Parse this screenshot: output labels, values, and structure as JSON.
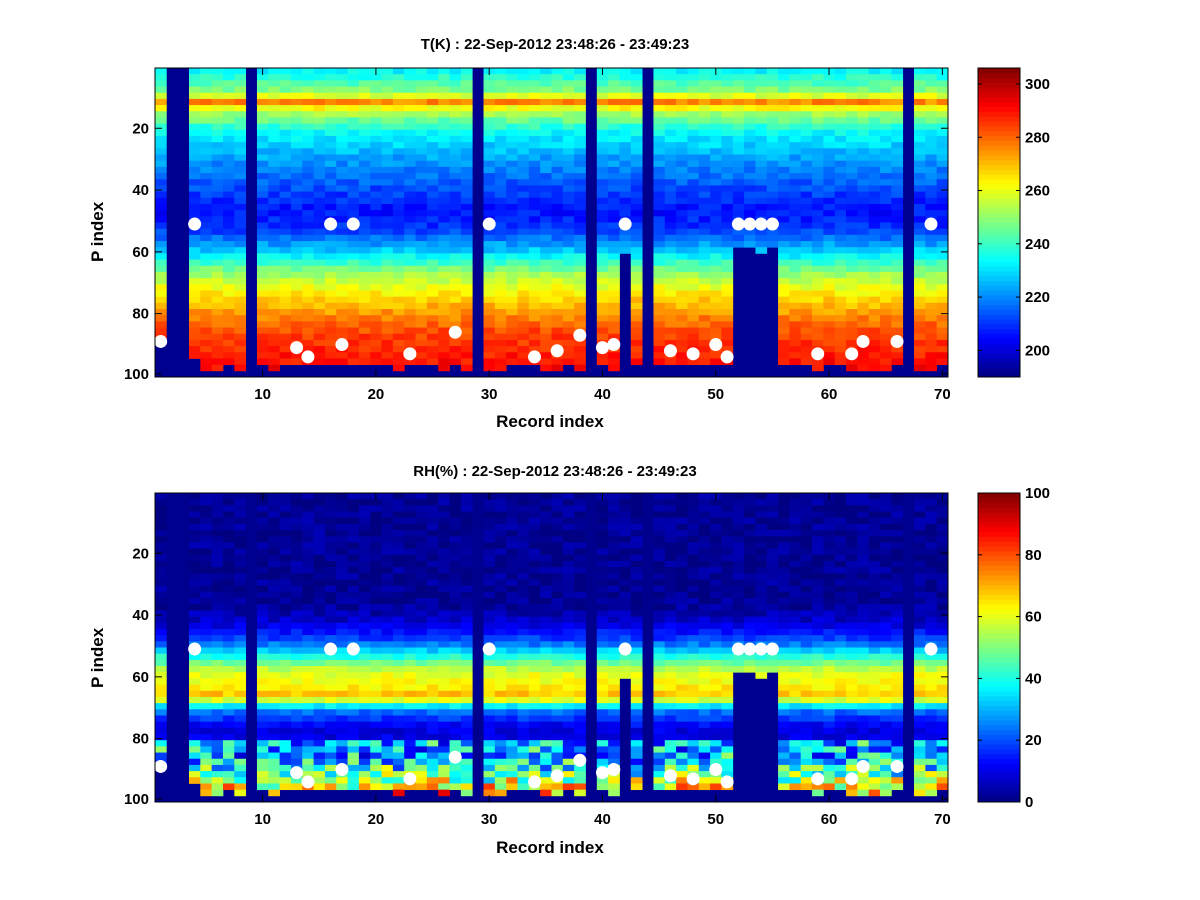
{
  "chart_data": [
    {
      "type": "heatmap",
      "title": "T(K) : 22-Sep-2012 23:48:26 - 23:49:23",
      "xlabel": "Record index",
      "ylabel": "P index",
      "xlim": [
        0.5,
        70.5
      ],
      "ylim": [
        100,
        1
      ],
      "xticks": [
        10,
        20,
        30,
        40,
        50,
        60,
        70
      ],
      "yticks": [
        20,
        40,
        60,
        80,
        100
      ],
      "colorbar": {
        "min": 190,
        "max": 306,
        "ticks": [
          200,
          220,
          240,
          260,
          280,
          300
        ],
        "colormap": "jet"
      },
      "profile": {
        "p_levels": [
          1,
          8,
          11,
          14,
          20,
          30,
          40,
          46,
          52,
          60,
          66,
          75,
          85,
          98
        ],
        "values": [
          233,
          250,
          276,
          255,
          235,
          222,
          212,
          206,
          210,
          230,
          250,
          268,
          283,
          292
        ]
      },
      "missing_columns": [
        2,
        3,
        9,
        29,
        39,
        44,
        67
      ],
      "partial_columns": [
        {
          "x": 42,
          "valid_to_p": 59
        },
        {
          "x": 52,
          "valid_to_p": 58
        },
        {
          "x": 53,
          "valid_to_p": 58
        },
        {
          "x": 54,
          "valid_to_p": 59
        },
        {
          "x": 55,
          "valid_to_p": 58
        }
      ],
      "markers_upper": [
        {
          "x": 4,
          "p": 51
        },
        {
          "x": 16,
          "p": 51
        },
        {
          "x": 18,
          "p": 51
        },
        {
          "x": 30,
          "p": 51
        },
        {
          "x": 42,
          "p": 51
        },
        {
          "x": 52,
          "p": 51
        },
        {
          "x": 53,
          "p": 51
        },
        {
          "x": 54,
          "p": 51
        },
        {
          "x": 55,
          "p": 51
        },
        {
          "x": 69,
          "p": 51
        }
      ],
      "markers_lower": [
        {
          "x": 1,
          "p": 89
        },
        {
          "x": 13,
          "p": 91
        },
        {
          "x": 14,
          "p": 94
        },
        {
          "x": 17,
          "p": 90
        },
        {
          "x": 23,
          "p": 93
        },
        {
          "x": 27,
          "p": 86
        },
        {
          "x": 34,
          "p": 94
        },
        {
          "x": 36,
          "p": 92
        },
        {
          "x": 38,
          "p": 87
        },
        {
          "x": 40,
          "p": 91
        },
        {
          "x": 41,
          "p": 90
        },
        {
          "x": 46,
          "p": 92
        },
        {
          "x": 48,
          "p": 93
        },
        {
          "x": 50,
          "p": 90
        },
        {
          "x": 51,
          "p": 94
        },
        {
          "x": 59,
          "p": 93
        },
        {
          "x": 62,
          "p": 93
        },
        {
          "x": 63,
          "p": 89
        },
        {
          "x": 66,
          "p": 89
        }
      ]
    },
    {
      "type": "heatmap",
      "title": "RH(%) : 22-Sep-2012 23:48:26 - 23:49:23",
      "xlabel": "Record index",
      "ylabel": "P index",
      "xlim": [
        0.5,
        70.5
      ],
      "ylim": [
        100,
        1
      ],
      "xticks": [
        10,
        20,
        30,
        40,
        50,
        60,
        70
      ],
      "yticks": [
        20,
        40,
        60,
        80,
        100
      ],
      "colorbar": {
        "min": 0,
        "max": 100,
        "ticks": [
          0,
          20,
          40,
          60,
          80,
          100
        ],
        "colormap": "jet"
      },
      "profile": {
        "p_levels": [
          1,
          36,
          42,
          48,
          54,
          58,
          62,
          66,
          70,
          76,
          86,
          92,
          98
        ],
        "values": [
          2,
          2,
          8,
          20,
          45,
          60,
          62,
          70,
          25,
          10,
          10,
          30,
          55
        ]
      },
      "missing_columns": [
        2,
        3,
        9,
        29,
        39,
        44,
        67
      ],
      "partial_columns": [
        {
          "x": 42,
          "valid_to_p": 59
        },
        {
          "x": 52,
          "valid_to_p": 58
        },
        {
          "x": 53,
          "valid_to_p": 58
        },
        {
          "x": 54,
          "valid_to_p": 59
        },
        {
          "x": 55,
          "valid_to_p": 58
        }
      ],
      "markers_upper": [
        {
          "x": 4,
          "p": 51
        },
        {
          "x": 16,
          "p": 51
        },
        {
          "x": 18,
          "p": 51
        },
        {
          "x": 30,
          "p": 51
        },
        {
          "x": 42,
          "p": 51
        },
        {
          "x": 52,
          "p": 51
        },
        {
          "x": 53,
          "p": 51
        },
        {
          "x": 54,
          "p": 51
        },
        {
          "x": 55,
          "p": 51
        },
        {
          "x": 69,
          "p": 51
        }
      ],
      "markers_lower": [
        {
          "x": 1,
          "p": 89
        },
        {
          "x": 13,
          "p": 91
        },
        {
          "x": 14,
          "p": 94
        },
        {
          "x": 17,
          "p": 90
        },
        {
          "x": 23,
          "p": 93
        },
        {
          "x": 27,
          "p": 86
        },
        {
          "x": 34,
          "p": 94
        },
        {
          "x": 36,
          "p": 92
        },
        {
          "x": 38,
          "p": 87
        },
        {
          "x": 40,
          "p": 91
        },
        {
          "x": 41,
          "p": 90
        },
        {
          "x": 46,
          "p": 92
        },
        {
          "x": 48,
          "p": 93
        },
        {
          "x": 50,
          "p": 90
        },
        {
          "x": 51,
          "p": 94
        },
        {
          "x": 59,
          "p": 93
        },
        {
          "x": 62,
          "p": 93
        },
        {
          "x": 63,
          "p": 89
        },
        {
          "x": 66,
          "p": 89
        }
      ]
    }
  ]
}
